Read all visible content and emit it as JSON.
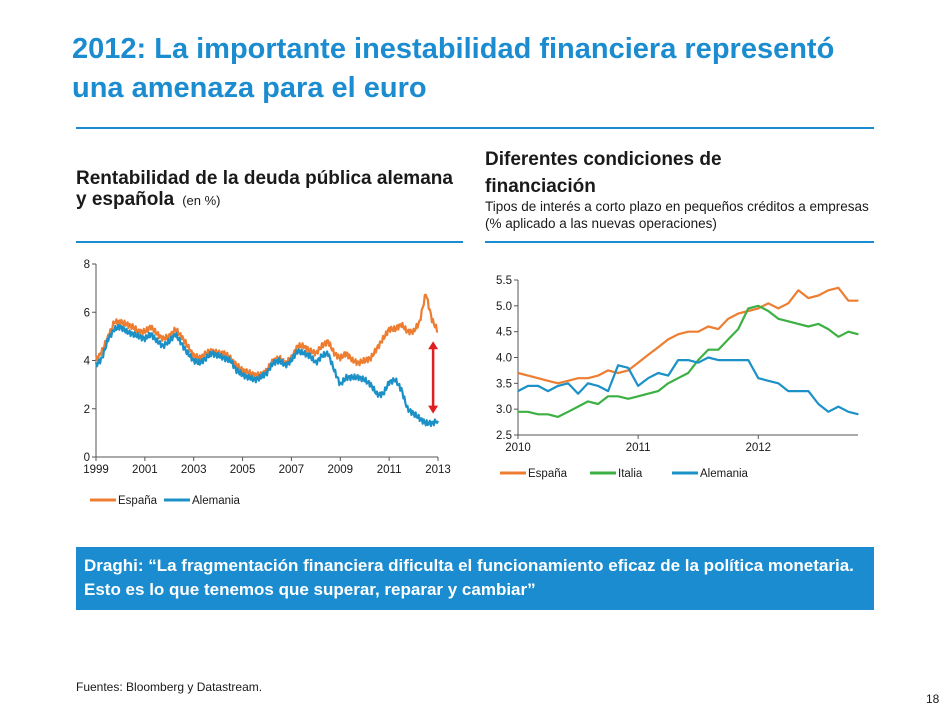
{
  "slide": {
    "title": "2012: La importante inestabilidad financiera representó una amenaza para el euro",
    "quote": "Draghi: “La fragmentación financiera dificulta el funcionamiento eficaz de la política monetaria. Esto es lo que tenemos que superar, reparar y cambiar”",
    "source": "Fuentes: Bloomberg y Datastream.",
    "page_number": "18",
    "accent_color": "#1a8ccf"
  },
  "left_panel": {
    "heading": "Rentabilidad de la deuda pública alemana y española",
    "unit": "(en %)"
  },
  "right_panel": {
    "heading": "Diferentes condiciones de financiación",
    "subheading": "Tipos de interés a corto plazo en pequeños créditos a empresas (% aplicado a las nuevas operaciones)"
  },
  "chart_data": [
    {
      "type": "line",
      "title": "Rentabilidad de la deuda pública alemana y española",
      "xlabel": "",
      "ylabel": "",
      "xlim": [
        1999,
        2013
      ],
      "ylim": [
        0,
        8
      ],
      "x_ticks": [
        "1999",
        "2001",
        "2003",
        "2005",
        "2007",
        "2009",
        "2011",
        "2013"
      ],
      "y_ticks": [
        "0",
        "2",
        "4",
        "6",
        "8"
      ],
      "grid": false,
      "legend": "bottom",
      "annotation": "red double-headed arrow showing the spread at end-2012",
      "series": [
        {
          "name": "España",
          "color": "#ed7d31",
          "x": [
            1999.0,
            1999.25,
            1999.5,
            1999.75,
            2000.0,
            2000.25,
            2000.5,
            2000.75,
            2001.0,
            2001.25,
            2001.5,
            2001.75,
            2002.0,
            2002.25,
            2002.5,
            2002.75,
            2003.0,
            2003.25,
            2003.5,
            2003.75,
            2004.0,
            2004.25,
            2004.5,
            2004.75,
            2005.0,
            2005.25,
            2005.5,
            2005.75,
            2006.0,
            2006.25,
            2006.5,
            2006.75,
            2007.0,
            2007.25,
            2007.5,
            2007.75,
            2008.0,
            2008.25,
            2008.5,
            2008.75,
            2009.0,
            2009.25,
            2009.5,
            2009.75,
            2010.0,
            2010.25,
            2010.5,
            2010.75,
            2011.0,
            2011.25,
            2011.5,
            2011.75,
            2012.0,
            2012.25,
            2012.5,
            2012.75,
            2013.0
          ],
          "values": [
            4.0,
            4.4,
            5.0,
            5.6,
            5.6,
            5.5,
            5.4,
            5.2,
            5.2,
            5.4,
            5.1,
            4.9,
            5.0,
            5.3,
            5.0,
            4.6,
            4.2,
            4.1,
            4.3,
            4.4,
            4.3,
            4.3,
            4.1,
            3.8,
            3.6,
            3.5,
            3.4,
            3.4,
            3.6,
            4.0,
            4.1,
            3.9,
            4.1,
            4.6,
            4.6,
            4.4,
            4.3,
            4.6,
            4.8,
            4.3,
            4.1,
            4.3,
            4.0,
            3.9,
            4.0,
            4.1,
            4.5,
            4.9,
            5.3,
            5.3,
            5.5,
            5.2,
            5.2,
            5.6,
            6.8,
            5.7,
            5.2
          ]
        },
        {
          "name": "Alemania",
          "color": "#1b91c8",
          "x": [
            1999.0,
            1999.25,
            1999.5,
            1999.75,
            2000.0,
            2000.25,
            2000.5,
            2000.75,
            2001.0,
            2001.25,
            2001.5,
            2001.75,
            2002.0,
            2002.25,
            2002.5,
            2002.75,
            2003.0,
            2003.25,
            2003.5,
            2003.75,
            2004.0,
            2004.25,
            2004.5,
            2004.75,
            2005.0,
            2005.25,
            2005.5,
            2005.75,
            2006.0,
            2006.25,
            2006.5,
            2006.75,
            2007.0,
            2007.25,
            2007.5,
            2007.75,
            2008.0,
            2008.25,
            2008.5,
            2008.75,
            2009.0,
            2009.25,
            2009.5,
            2009.75,
            2010.0,
            2010.25,
            2010.5,
            2010.75,
            2011.0,
            2011.25,
            2011.5,
            2011.75,
            2012.0,
            2012.25,
            2012.5,
            2012.75,
            2013.0
          ],
          "values": [
            3.8,
            4.1,
            4.9,
            5.3,
            5.4,
            5.2,
            5.1,
            5.0,
            4.9,
            5.1,
            4.8,
            4.6,
            4.8,
            5.1,
            4.7,
            4.3,
            4.0,
            3.9,
            4.1,
            4.3,
            4.2,
            4.1,
            4.0,
            3.6,
            3.4,
            3.3,
            3.2,
            3.3,
            3.5,
            3.9,
            4.0,
            3.8,
            4.0,
            4.4,
            4.3,
            4.2,
            3.9,
            4.2,
            4.3,
            3.6,
            3.0,
            3.3,
            3.3,
            3.3,
            3.2,
            3.0,
            2.6,
            2.6,
            3.1,
            3.2,
            2.8,
            2.0,
            1.8,
            1.6,
            1.4,
            1.4,
            1.5
          ]
        }
      ]
    },
    {
      "type": "line",
      "title": "Diferentes condiciones de financiación",
      "xlabel": "",
      "ylabel": "",
      "xlim": [
        2010,
        2012.83
      ],
      "ylim": [
        2.5,
        5.5
      ],
      "x_ticks": [
        "2010",
        "2011",
        "2012"
      ],
      "y_ticks": [
        "2.5",
        "3.0",
        "3.5",
        "4.0",
        "4.5",
        "5.0",
        "5.5"
      ],
      "grid": false,
      "legend": "bottom",
      "series": [
        {
          "name": "España",
          "color": "#ed7d31",
          "x": [
            2010.0,
            2010.083,
            2010.167,
            2010.25,
            2010.333,
            2010.417,
            2010.5,
            2010.583,
            2010.667,
            2010.75,
            2010.833,
            2010.917,
            2011.0,
            2011.083,
            2011.167,
            2011.25,
            2011.333,
            2011.417,
            2011.5,
            2011.583,
            2011.667,
            2011.75,
            2011.833,
            2011.917,
            2012.0,
            2012.083,
            2012.167,
            2012.25,
            2012.333,
            2012.417,
            2012.5,
            2012.583,
            2012.667,
            2012.75,
            2012.833
          ],
          "values": [
            3.7,
            3.65,
            3.6,
            3.55,
            3.5,
            3.55,
            3.6,
            3.6,
            3.65,
            3.75,
            3.7,
            3.75,
            3.9,
            4.05,
            4.2,
            4.35,
            4.45,
            4.5,
            4.5,
            4.6,
            4.55,
            4.75,
            4.85,
            4.9,
            4.95,
            5.05,
            4.95,
            5.05,
            5.3,
            5.15,
            5.2,
            5.3,
            5.35,
            5.1,
            5.1
          ]
        },
        {
          "name": "Italia",
          "color": "#3cb043",
          "x": [
            2010.0,
            2010.083,
            2010.167,
            2010.25,
            2010.333,
            2010.417,
            2010.5,
            2010.583,
            2010.667,
            2010.75,
            2010.833,
            2010.917,
            2011.0,
            2011.083,
            2011.167,
            2011.25,
            2011.333,
            2011.417,
            2011.5,
            2011.583,
            2011.667,
            2011.75,
            2011.833,
            2011.917,
            2012.0,
            2012.083,
            2012.167,
            2012.25,
            2012.333,
            2012.417,
            2012.5,
            2012.583,
            2012.667,
            2012.75,
            2012.833
          ],
          "values": [
            2.95,
            2.95,
            2.9,
            2.9,
            2.85,
            2.95,
            3.05,
            3.15,
            3.1,
            3.25,
            3.25,
            3.2,
            3.25,
            3.3,
            3.35,
            3.5,
            3.6,
            3.7,
            3.95,
            4.15,
            4.15,
            4.35,
            4.55,
            4.95,
            5.0,
            4.9,
            4.75,
            4.7,
            4.65,
            4.6,
            4.65,
            4.55,
            4.4,
            4.5,
            4.45
          ]
        },
        {
          "name": "Alemania",
          "color": "#1b91c8",
          "x": [
            2010.0,
            2010.083,
            2010.167,
            2010.25,
            2010.333,
            2010.417,
            2010.5,
            2010.583,
            2010.667,
            2010.75,
            2010.833,
            2010.917,
            2011.0,
            2011.083,
            2011.167,
            2011.25,
            2011.333,
            2011.417,
            2011.5,
            2011.583,
            2011.667,
            2011.75,
            2011.833,
            2011.917,
            2012.0,
            2012.083,
            2012.167,
            2012.25,
            2012.333,
            2012.417,
            2012.5,
            2012.583,
            2012.667,
            2012.75,
            2012.833
          ],
          "values": [
            3.35,
            3.45,
            3.45,
            3.35,
            3.45,
            3.5,
            3.3,
            3.5,
            3.45,
            3.35,
            3.85,
            3.8,
            3.45,
            3.6,
            3.7,
            3.65,
            3.95,
            3.95,
            3.9,
            4.0,
            3.95,
            3.95,
            3.95,
            3.95,
            3.6,
            3.55,
            3.5,
            3.35,
            3.35,
            3.35,
            3.1,
            2.95,
            3.05,
            2.95,
            2.9
          ]
        }
      ]
    }
  ]
}
